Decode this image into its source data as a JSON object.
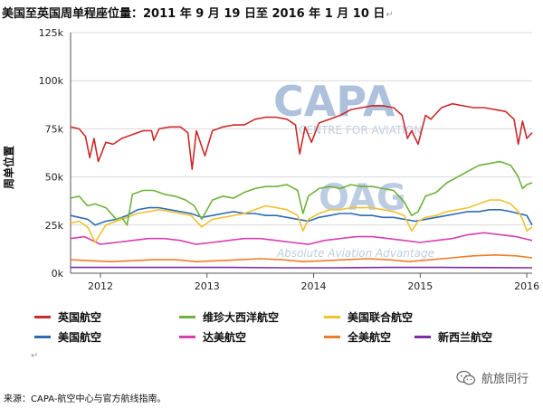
{
  "header": {
    "title": "美国至英国周单程座位量：2011 年 9 月 19 日至 2016 年 1 月 10 日",
    "return_mark": "↵"
  },
  "chart_data": {
    "type": "line",
    "title": "美国至英国周单程座位量：2011 年 9 月 19 日至 2016 年 1 月 10 日",
    "xlabel": "",
    "ylabel": "周单位置",
    "xlim": [
      2011.72,
      2016.05
    ],
    "ylim": [
      0,
      125000
    ],
    "x_ticks": [
      2012,
      2013,
      2014,
      2015,
      2016
    ],
    "x_tick_labels": [
      "2012",
      "2013",
      "2014",
      "2015",
      "2016"
    ],
    "y_ticks": [
      0,
      25000,
      50000,
      75000,
      100000,
      125000
    ],
    "y_tick_labels": [
      "0k",
      "25k",
      "50k",
      "75k",
      "100k",
      "125k"
    ],
    "grid": "horizontal",
    "legend_placement": "bottom",
    "series": [
      {
        "name": "英国航空",
        "color": "#cc2a2a",
        "x": [
          2011.72,
          2011.8,
          2011.86,
          2011.9,
          2011.94,
          2011.98,
          2012.05,
          2012.12,
          2012.2,
          2012.3,
          2012.4,
          2012.48,
          2012.5,
          2012.55,
          2012.65,
          2012.75,
          2012.82,
          2012.86,
          2012.9,
          2012.98,
          2013.05,
          2013.15,
          2013.25,
          2013.35,
          2013.45,
          2013.55,
          2013.65,
          2013.75,
          2013.83,
          2013.87,
          2013.92,
          2013.98,
          2014.05,
          2014.15,
          2014.25,
          2014.35,
          2014.45,
          2014.55,
          2014.65,
          2014.75,
          2014.83,
          2014.88,
          2014.92,
          2014.98,
          2015.05,
          2015.1,
          2015.2,
          2015.3,
          2015.4,
          2015.5,
          2015.6,
          2015.7,
          2015.8,
          2015.88,
          2015.92,
          2015.96,
          2016.0,
          2016.05
        ],
        "values": [
          76000,
          75000,
          71000,
          60000,
          70000,
          58000,
          68000,
          67000,
          70000,
          72000,
          74000,
          74000,
          69000,
          75000,
          76000,
          76000,
          73000,
          54000,
          74000,
          61000,
          74000,
          76000,
          77000,
          77000,
          80000,
          81000,
          81000,
          80000,
          77000,
          62000,
          76000,
          68000,
          78000,
          80000,
          82000,
          85000,
          86000,
          87000,
          87000,
          86000,
          82000,
          70000,
          74000,
          67000,
          82000,
          80000,
          86000,
          88000,
          87000,
          86000,
          86000,
          85000,
          84000,
          80000,
          67000,
          79000,
          70000,
          73000
        ]
      },
      {
        "name": "维珍大西洋航空",
        "color": "#6db23a",
        "x": [
          2011.72,
          2011.8,
          2011.88,
          2011.95,
          2012.05,
          2012.15,
          2012.2,
          2012.25,
          2012.3,
          2012.4,
          2012.5,
          2012.6,
          2012.7,
          2012.8,
          2012.88,
          2012.95,
          2013.05,
          2013.15,
          2013.25,
          2013.35,
          2013.45,
          2013.55,
          2013.65,
          2013.75,
          2013.85,
          2013.9,
          2013.95,
          2014.05,
          2014.15,
          2014.25,
          2014.35,
          2014.45,
          2014.55,
          2014.65,
          2014.75,
          2014.85,
          2014.92,
          2014.98,
          2015.05,
          2015.15,
          2015.25,
          2015.35,
          2015.45,
          2015.55,
          2015.65,
          2015.75,
          2015.85,
          2015.92,
          2015.96,
          2016.0,
          2016.05
        ],
        "values": [
          39000,
          40000,
          35000,
          36000,
          34000,
          28000,
          29000,
          25000,
          41000,
          43000,
          43000,
          41000,
          40000,
          38000,
          35000,
          28000,
          38000,
          40000,
          39000,
          42000,
          44000,
          45000,
          45000,
          46000,
          43000,
          31000,
          40000,
          44000,
          45000,
          44000,
          46000,
          45000,
          45000,
          44000,
          43000,
          37000,
          30000,
          32000,
          40000,
          42000,
          47000,
          50000,
          53000,
          56000,
          57000,
          58000,
          56000,
          50000,
          44000,
          46000,
          47000
        ]
      },
      {
        "name": "美国联合航空",
        "color": "#f2c12e",
        "x": [
          2011.72,
          2011.8,
          2011.88,
          2011.95,
          2012.05,
          2012.15,
          2012.25,
          2012.35,
          2012.45,
          2012.55,
          2012.65,
          2012.75,
          2012.85,
          2012.95,
          2013.05,
          2013.15,
          2013.25,
          2013.35,
          2013.45,
          2013.55,
          2013.65,
          2013.75,
          2013.85,
          2013.9,
          2013.95,
          2014.05,
          2014.15,
          2014.25,
          2014.35,
          2014.45,
          2014.55,
          2014.65,
          2014.75,
          2014.85,
          2014.92,
          2014.98,
          2015.05,
          2015.15,
          2015.25,
          2015.35,
          2015.45,
          2015.55,
          2015.65,
          2015.75,
          2015.85,
          2015.92,
          2015.96,
          2016.0,
          2016.05
        ],
        "values": [
          26000,
          27000,
          24000,
          16000,
          25000,
          27000,
          29000,
          31000,
          32000,
          33000,
          32000,
          31000,
          30000,
          24000,
          28000,
          29000,
          30000,
          31000,
          33000,
          35000,
          34000,
          33000,
          30000,
          22000,
          28000,
          31000,
          33000,
          33000,
          34000,
          34000,
          34000,
          33000,
          32000,
          30000,
          22000,
          27000,
          29000,
          30000,
          32000,
          33000,
          34000,
          36000,
          38000,
          38000,
          36000,
          32000,
          28000,
          22000,
          24000
        ]
      },
      {
        "name": "美国航空",
        "color": "#2b6cb4",
        "x": [
          2011.72,
          2011.8,
          2011.88,
          2011.95,
          2012.05,
          2012.15,
          2012.25,
          2012.35,
          2012.45,
          2012.55,
          2012.65,
          2012.75,
          2012.85,
          2012.95,
          2013.05,
          2013.15,
          2013.25,
          2013.35,
          2013.45,
          2013.55,
          2013.65,
          2013.75,
          2013.85,
          2013.95,
          2014.05,
          2014.15,
          2014.25,
          2014.35,
          2014.45,
          2014.55,
          2014.65,
          2014.75,
          2014.85,
          2014.95,
          2015.05,
          2015.15,
          2015.25,
          2015.35,
          2015.45,
          2015.55,
          2015.65,
          2015.75,
          2015.85,
          2015.92,
          2016.0,
          2016.05
        ],
        "values": [
          30000,
          29000,
          28000,
          25000,
          27000,
          28000,
          30000,
          33000,
          34000,
          34000,
          33000,
          32000,
          31000,
          29000,
          30000,
          31000,
          32000,
          31000,
          31000,
          30000,
          30000,
          29000,
          28000,
          27000,
          29000,
          30000,
          31000,
          31000,
          30000,
          30000,
          29000,
          29000,
          28000,
          27000,
          28000,
          29000,
          30000,
          31000,
          32000,
          32000,
          33000,
          33000,
          32000,
          31000,
          30000,
          25000
        ]
      },
      {
        "name": "达美航空",
        "color": "#d63fb0",
        "x": [
          2011.72,
          2011.85,
          2012.0,
          2012.15,
          2012.3,
          2012.45,
          2012.6,
          2012.75,
          2012.9,
          2013.05,
          2013.2,
          2013.35,
          2013.5,
          2013.65,
          2013.8,
          2013.95,
          2014.1,
          2014.25,
          2014.4,
          2014.55,
          2014.7,
          2014.85,
          2015.0,
          2015.15,
          2015.3,
          2015.45,
          2015.6,
          2015.75,
          2015.9,
          2016.05
        ],
        "values": [
          18000,
          19000,
          15000,
          16000,
          17000,
          18000,
          18000,
          17000,
          15000,
          16000,
          17000,
          18000,
          18000,
          17000,
          16000,
          15000,
          17000,
          18000,
          19000,
          19000,
          18000,
          17000,
          16000,
          17000,
          18000,
          20000,
          21000,
          20000,
          19000,
          17000
        ]
      },
      {
        "name": "全美航空",
        "color": "#f07b2a",
        "x": [
          2011.72,
          2011.9,
          2012.1,
          2012.3,
          2012.5,
          2012.7,
          2012.9,
          2013.1,
          2013.3,
          2013.5,
          2013.7,
          2013.9,
          2014.1,
          2014.3,
          2014.5,
          2014.7,
          2014.9,
          2015.1,
          2015.3,
          2015.5,
          2015.7,
          2015.9,
          2016.05
        ],
        "values": [
          7000,
          6500,
          6000,
          6500,
          7000,
          7000,
          6000,
          6500,
          7000,
          7500,
          7000,
          6000,
          6500,
          7000,
          7500,
          7000,
          6000,
          7000,
          8000,
          9000,
          9500,
          9000,
          8000
        ]
      },
      {
        "name": "新西兰航空",
        "color": "#7a2fa5",
        "x": [
          2011.72,
          2012.2,
          2012.7,
          2013.2,
          2013.7,
          2014.2,
          2014.7,
          2015.2,
          2015.7,
          2016.05
        ],
        "values": [
          3000,
          3000,
          3000,
          3000,
          2800,
          2800,
          3000,
          3000,
          2900,
          2800
        ]
      }
    ]
  },
  "legend_return_mark": "↵",
  "source": {
    "text": "来源：CAPA-航空中心与官方航线指南。"
  },
  "brand": {
    "name": "航旅同行",
    "icon": "wechat-icon"
  },
  "watermark": {
    "name": "CAPA",
    "tagline": "CENTRE FOR AVIATION",
    "sub_name": "OAG",
    "sub_tagline": "Absolute Aviation Advantage",
    "color": "#6d8fc0"
  }
}
